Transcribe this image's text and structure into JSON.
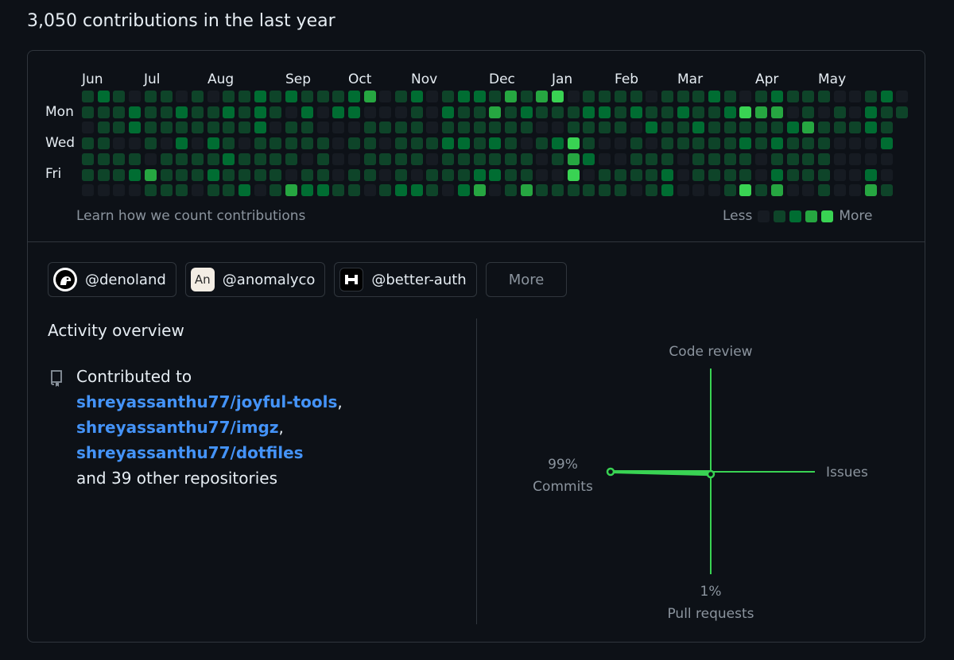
{
  "heading": "3,050 contributions in the last year",
  "months": [
    "Jun",
    "Jul",
    "Aug",
    "Sep",
    "Oct",
    "Nov",
    "Dec",
    "Jan",
    "Feb",
    "Mar",
    "Apr",
    "May"
  ],
  "days": [
    "Mon",
    "Wed",
    "Fri"
  ],
  "learn_link": "Learn how we count contributions",
  "legend": {
    "less": "Less",
    "more": "More"
  },
  "colors": {
    "level0": "#161b22",
    "level1": "#0e4429",
    "level2": "#006d32",
    "level3": "#26a641",
    "level4": "#39d353",
    "link": "#4493f8",
    "accent": "#39d353"
  },
  "orgs": [
    {
      "name": "@denoland",
      "icon": "deno-logo-icon"
    },
    {
      "name": "@anomalyco",
      "icon": "anomalyco-logo-icon",
      "initials": "An"
    },
    {
      "name": "@better-auth",
      "icon": "better-auth-logo-icon"
    }
  ],
  "orgs_more": "More",
  "activity": {
    "title": "Activity overview",
    "contributed_to": "Contributed to",
    "repos": [
      "shreyassanthu77/joyful-tools",
      "shreyassanthu77/imgz",
      "shreyassanthu77/dotfiles"
    ],
    "others": "and 39 other repositories",
    "repo_icon": "repo-icon"
  },
  "radar": {
    "code_review": "Code review",
    "issues": "Issues",
    "commits_pct": "99%",
    "commits": "Commits",
    "pull_requests_pct": "1%",
    "pull_requests": "Pull requests",
    "values": {
      "commits": 99,
      "issues": 0,
      "code_review": 0,
      "pull_requests": 1
    }
  }
}
